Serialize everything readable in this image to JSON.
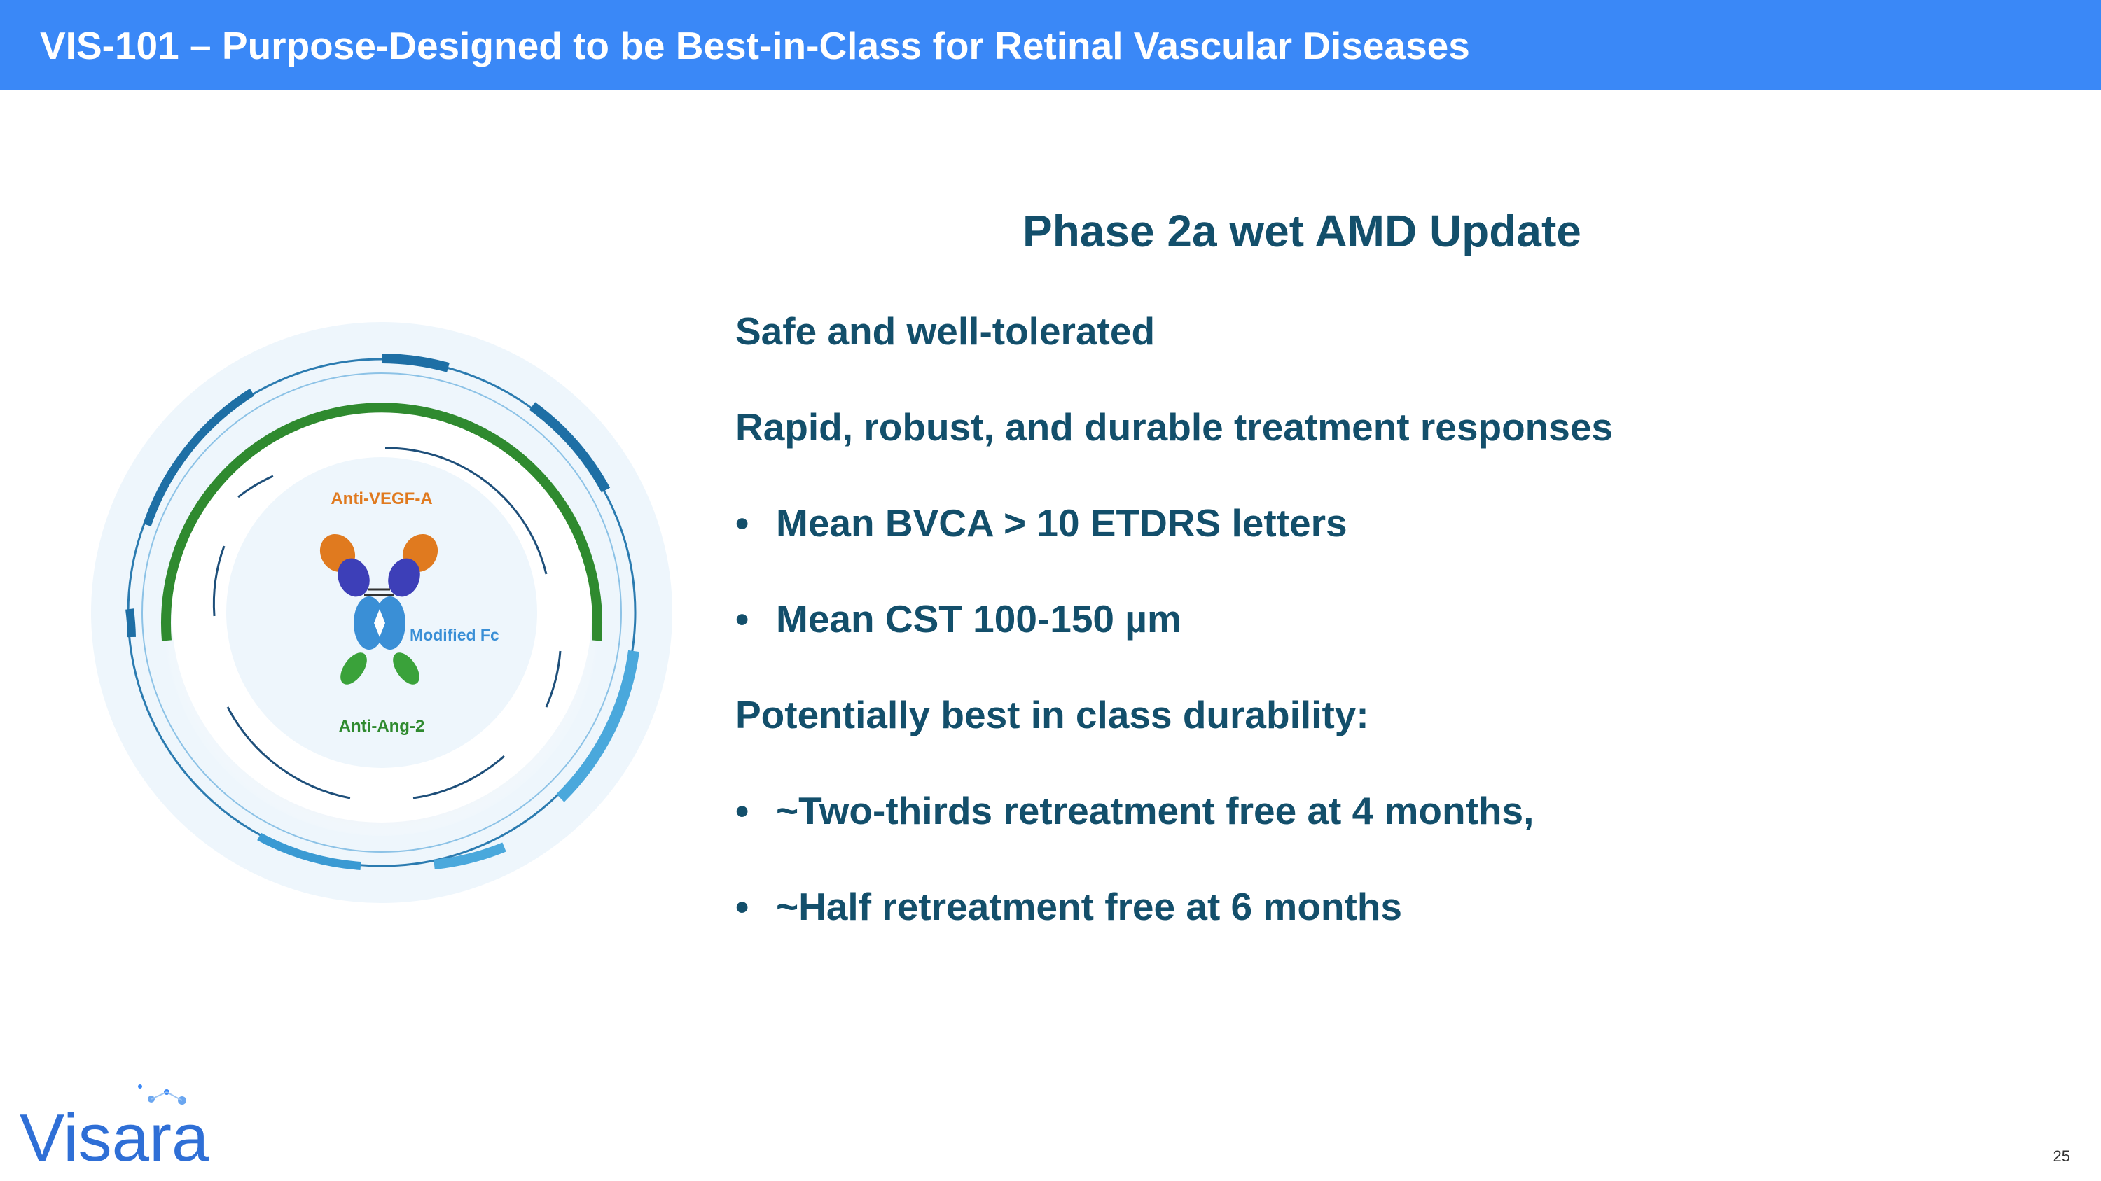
{
  "header": {
    "title": "VIS-101 – Purpose-Designed to be Best-in-Class for Retinal Vascular Diseases"
  },
  "graphic": {
    "labels": {
      "anti_vegf": "Anti-VEGF-A",
      "modified_fc": "Modified Fc",
      "anti_ang2": "Anti-Ang-2"
    }
  },
  "content": {
    "title": "Phase 2a wet AMD Update",
    "items": [
      {
        "text": "Safe and well-tolerated",
        "bullet": false
      },
      {
        "text": "Rapid, robust, and durable treatment responses",
        "bullet": false
      },
      {
        "text": "Mean BVCA > 10 ETDRS letters",
        "bullet": true
      },
      {
        "text": "Mean CST 100-150 µm",
        "bullet": true
      },
      {
        "text": "Potentially best in class durability:",
        "bullet": false
      },
      {
        "text": "~Two-thirds retreatment free at 4 months,",
        "bullet": true
      },
      {
        "text": "~Half retreatment free at 6 months",
        "bullet": true
      }
    ],
    "bullet_char": "•"
  },
  "logo": {
    "text": "Visara"
  },
  "footer": {
    "page_number": "25"
  },
  "colors": {
    "header_blue": "#3a88f7",
    "text_navy": "#134f6b",
    "orange": "#e07a1f",
    "green": "#3aa23a",
    "antibody_blue": "#3a8fd6",
    "purple": "#3d3fb8"
  }
}
